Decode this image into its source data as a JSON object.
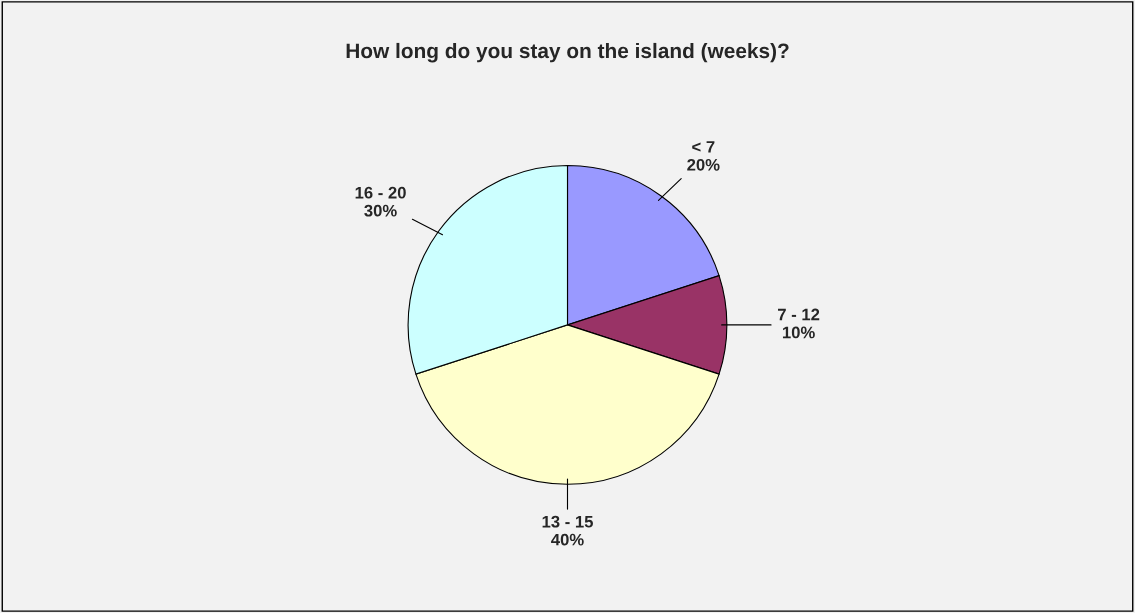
{
  "chart_data": {
    "type": "pie",
    "title": "How long do you stay on the island (weeks)?",
    "categories": [
      "< 7",
      "7 - 12",
      "13 - 15",
      "16 - 20"
    ],
    "values": [
      20,
      10,
      40,
      30
    ],
    "value_labels": [
      "20%",
      "10%",
      "40%",
      "30%"
    ],
    "colors": [
      "#9999ff",
      "#993366",
      "#ffffcc",
      "#ccffff"
    ]
  }
}
